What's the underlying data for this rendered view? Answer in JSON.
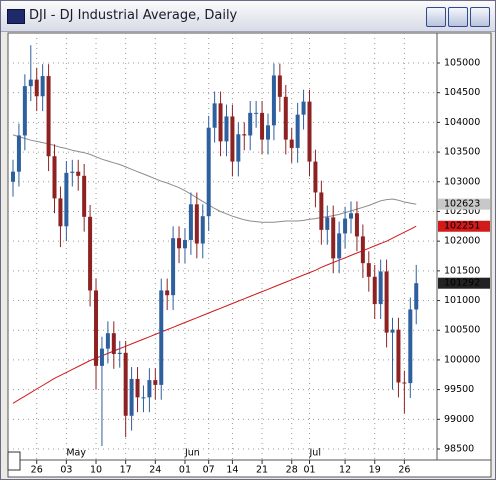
{
  "chart_data": {
    "type": "candlestick",
    "title": "DJI - DJ Industrial Average, Daily",
    "categories": [
      null,
      null,
      null,
      null,
      "26",
      null,
      null,
      null,
      null,
      "03",
      null,
      null,
      null,
      null,
      "10",
      null,
      null,
      null,
      null,
      "17",
      null,
      null,
      null,
      null,
      "24",
      null,
      null,
      null,
      null,
      "01",
      null,
      null,
      null,
      "07",
      null,
      null,
      null,
      "14",
      null,
      null,
      null,
      null,
      "21",
      null,
      null,
      null,
      null,
      "28",
      null,
      null,
      "01",
      null,
      null,
      null,
      null,
      null,
      "12",
      null,
      null,
      null,
      null,
      "19",
      null,
      null,
      null,
      null,
      "26",
      null,
      null
    ],
    "months": [
      null,
      null,
      null,
      null,
      null,
      null,
      null,
      null,
      null,
      "May",
      null,
      null,
      null,
      null,
      null,
      null,
      null,
      null,
      null,
      null,
      null,
      null,
      null,
      null,
      null,
      null,
      null,
      null,
      null,
      "Jun",
      null,
      null,
      null,
      null,
      null,
      null,
      null,
      null,
      null,
      null,
      null,
      null,
      null,
      null,
      null,
      null,
      null,
      null,
      null,
      null,
      "Jul",
      null,
      null,
      null,
      null,
      null,
      null,
      null,
      null,
      null,
      null,
      null,
      null,
      null,
      null,
      null,
      null,
      null,
      null
    ],
    "open": [
      103000,
      103170,
      103780,
      104610,
      104720,
      104440,
      104780,
      103430,
      102720,
      102250,
      103150,
      103170,
      103100,
      102410,
      101170,
      99900,
      100190,
      100450,
      100100,
      100120,
      99060,
      99680,
      99370,
      99370,
      99660,
      99580,
      101170,
      101090,
      102050,
      101880,
      102020,
      102620,
      101960,
      102420,
      103910,
      104320,
      103680,
      104100,
      103340,
      103800,
      103780,
      104160,
      104160,
      103710,
      103950,
      104790,
      104430,
      103710,
      103570,
      104130,
      104350,
      103340,
      102820,
      102190,
      102400,
      101710,
      102130,
      102380,
      102470,
      102080,
      101630,
      101400,
      100940,
      101490,
      100460,
      100510,
      99620,
      99610,
      100850
    ],
    "high": [
      103370,
      103980,
      104810,
      105300,
      104920,
      104980,
      104980,
      103630,
      102920,
      103350,
      103370,
      103370,
      103300,
      102610,
      101370,
      100390,
      100650,
      100650,
      100320,
      100320,
      99880,
      99880,
      99570,
      99860,
      99860,
      101370,
      101370,
      102250,
      102250,
      102220,
      102820,
      102820,
      102620,
      104110,
      104520,
      104520,
      104300,
      104300,
      104000,
      104000,
      104360,
      104360,
      104360,
      104150,
      104990,
      104990,
      104630,
      103910,
      104330,
      104550,
      104550,
      103540,
      103020,
      102600,
      102600,
      102330,
      102580,
      102670,
      102670,
      102280,
      101830,
      101600,
      101690,
      101690,
      100710,
      100710,
      99820,
      101050,
      101600
    ],
    "low": [
      102750,
      102920,
      103530,
      104360,
      104190,
      104190,
      103180,
      102470,
      101900,
      102000,
      102920,
      102850,
      102160,
      100900,
      99500,
      98550,
      99940,
      99850,
      99870,
      98700,
      98810,
      99120,
      99120,
      99120,
      99330,
      99330,
      100840,
      100840,
      101630,
      101630,
      101770,
      101710,
      101710,
      102170,
      103660,
      103430,
      103430,
      103090,
      103090,
      103530,
      103530,
      103910,
      103460,
      103460,
      103700,
      104180,
      103460,
      103320,
      103320,
      103880,
      103090,
      102570,
      101940,
      101940,
      101460,
      101460,
      101880,
      102130,
      101830,
      101380,
      101150,
      100690,
      100690,
      100210,
      99500,
      99370,
      99100,
      99360,
      100600
    ],
    "close": [
      103170,
      103780,
      104610,
      104720,
      104440,
      104780,
      103430,
      102720,
      102250,
      103150,
      103170,
      103100,
      102410,
      101170,
      99900,
      100190,
      100450,
      100100,
      100120,
      99060,
      99680,
      99370,
      99370,
      99660,
      99580,
      101170,
      101090,
      102050,
      101880,
      102020,
      102620,
      101960,
      102420,
      103910,
      104320,
      103680,
      104100,
      103340,
      103800,
      103780,
      104160,
      104160,
      103710,
      103950,
      104790,
      104430,
      103710,
      103570,
      104130,
      104350,
      103340,
      102820,
      102190,
      102400,
      101710,
      102130,
      102380,
      102470,
      102080,
      101630,
      101400,
      100940,
      101490,
      100460,
      100510,
      99620,
      99610,
      100850,
      101292
    ],
    "up_color": "#2e5f9e",
    "down_color": "#8e2222",
    "moving_averages": [
      {
        "color": "#8c8c8c",
        "values": [
          103790,
          103760,
          103730,
          103700,
          103680,
          103660,
          103640,
          103610,
          103580,
          103560,
          103530,
          103510,
          103490,
          103460,
          103420,
          103380,
          103350,
          103320,
          103290,
          103250,
          103210,
          103170,
          103130,
          103090,
          103050,
          103010,
          102980,
          102940,
          102900,
          102850,
          102790,
          102730,
          102670,
          102610,
          102550,
          102500,
          102460,
          102420,
          102390,
          102360,
          102340,
          102330,
          102320,
          102320,
          102320,
          102330,
          102340,
          102340,
          102340,
          102350,
          102370,
          102380,
          102400,
          102410,
          102430,
          102450,
          102480,
          102510,
          102540,
          102570,
          102600,
          102640,
          102680,
          102700,
          102710,
          102690,
          102660,
          102640,
          102623
        ]
      },
      {
        "color": "#d11a1a",
        "values": [
          99270,
          99330,
          99390,
          99450,
          99510,
          99570,
          99630,
          99690,
          99740,
          99790,
          99840,
          99890,
          99940,
          99990,
          100030,
          100070,
          100110,
          100150,
          100190,
          100230,
          100270,
          100310,
          100350,
          100390,
          100430,
          100470,
          100510,
          100550,
          100590,
          100630,
          100670,
          100710,
          100750,
          100790,
          100830,
          100870,
          100910,
          100950,
          100990,
          101030,
          101070,
          101110,
          101150,
          101190,
          101230,
          101270,
          101310,
          101350,
          101390,
          101430,
          101470,
          101510,
          101560,
          101600,
          101640,
          101680,
          101720,
          101760,
          101800,
          101840,
          101880,
          101920,
          101960,
          102000,
          102050,
          102100,
          102150,
          102200,
          102251
        ]
      }
    ],
    "ylim": [
      98315,
      105505
    ],
    "yticks": [
      98500,
      99000,
      99500,
      100000,
      100500,
      101000,
      101500,
      102000,
      102500,
      103000,
      103500,
      104000,
      104500,
      105000
    ],
    "grid": true
  }
}
